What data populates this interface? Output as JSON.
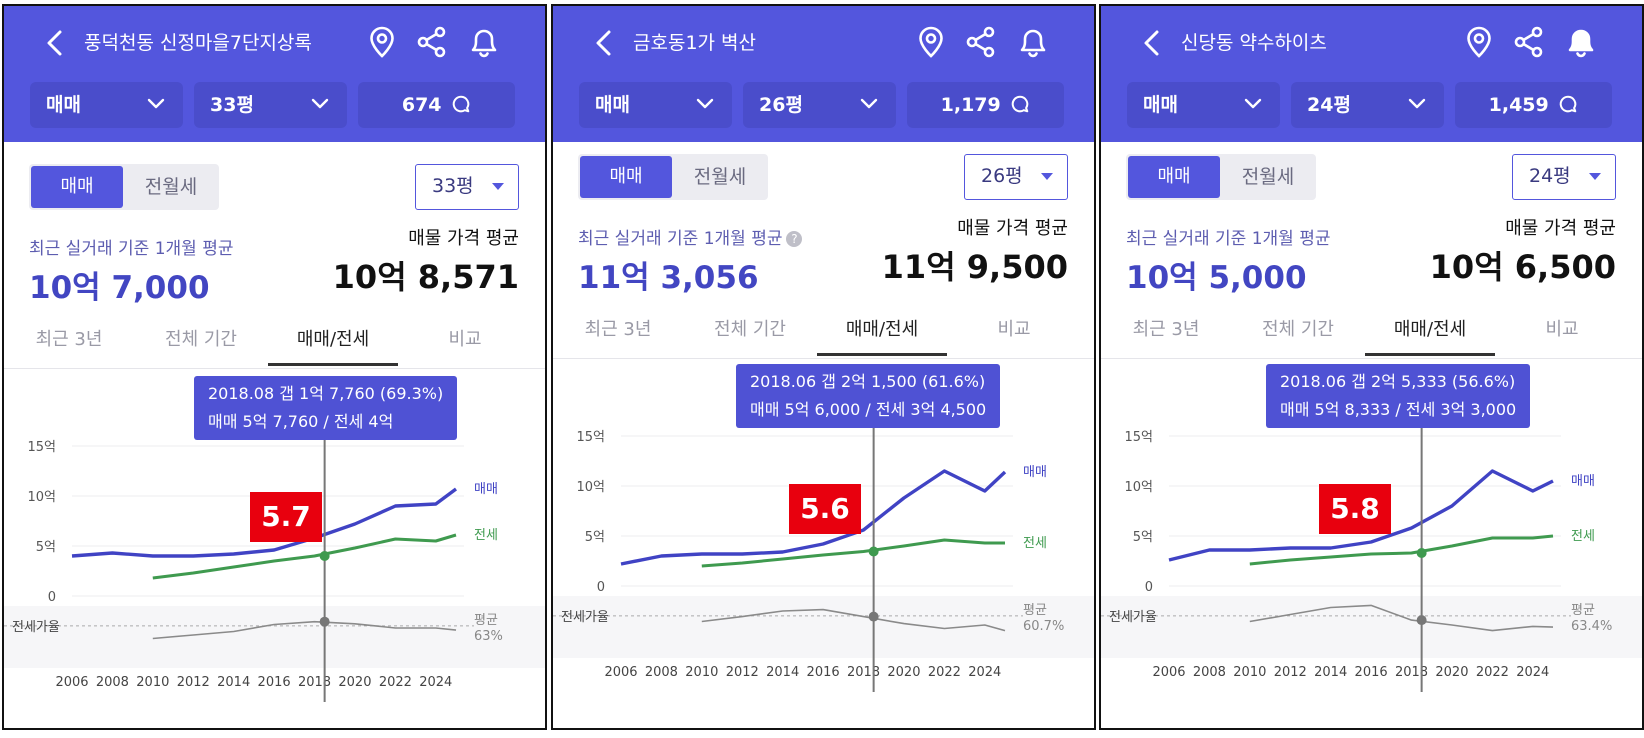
{
  "panels": [
    {
      "title": "풍덕천동 신정마을7단지상록",
      "filters": {
        "trade": "매매",
        "area": "33평",
        "count": "674"
      },
      "toggle": {
        "active": "매매",
        "inactive": "전월세"
      },
      "area_select": "33평",
      "recent_label": "최근 실거래 기준 1개월 평균",
      "recent_value": "10억 7,000",
      "listing_label": "매물 가격 평균",
      "listing_value": "10억 8,571",
      "tabs": [
        "최근 3년",
        "전체 기간",
        "매매/전세",
        "비교"
      ],
      "tooltip": {
        "line1": "2018.08  갭 1억 7,760 (69.3%)",
        "line2": "매매 5억 7,760 / 전세 4억"
      },
      "ratio_badge": "5.7",
      "chart_data": {
        "type": "line",
        "x": [
          2006,
          2008,
          2010,
          2012,
          2014,
          2016,
          2018,
          2020,
          2022,
          2024,
          2025
        ],
        "xticks": [
          "2006",
          "2008",
          "2010",
          "2012",
          "2014",
          "2016",
          "2018",
          "2020",
          "2022",
          "2024"
        ],
        "yticks": [
          "15억",
          "10억",
          "5억",
          "0"
        ],
        "ylim": [
          0,
          15
        ],
        "series": [
          {
            "name": "매매",
            "color": "#4043c4",
            "values": [
              4.0,
              4.3,
              4.0,
              4.0,
              4.2,
              4.6,
              5.8,
              7.2,
              9.0,
              9.2,
              10.7
            ]
          },
          {
            "name": "전세",
            "color": "#3f9a4f",
            "values": [
              null,
              null,
              1.8,
              2.3,
              2.9,
              3.5,
              4.0,
              4.8,
              5.7,
              5.5,
              6.1
            ]
          },
          {
            "name": "전세가율",
            "color": "#8a8a8a",
            "values": [
              null,
              null,
              45,
              50,
              55,
              65,
              69,
              66,
              60,
              60,
              57
            ]
          }
        ],
        "ratio_label": "전세가율",
        "avg_label": "평균",
        "avg_value": "63%"
      }
    },
    {
      "title": "금호동1가 벽산",
      "filters": {
        "trade": "매매",
        "area": "26평",
        "count": "1,179"
      },
      "toggle": {
        "active": "매매",
        "inactive": "전월세"
      },
      "area_select": "26평",
      "recent_label": "최근 실거래 기준 1개월 평균",
      "recent_value": "11억 3,056",
      "listing_label": "매물 가격 평균",
      "listing_value": "11억 9,500",
      "tabs": [
        "최근 3년",
        "전체 기간",
        "매매/전세",
        "비교"
      ],
      "tooltip": {
        "line1": "2018.06  갭 2억 1,500 (61.6%)",
        "line2": "매매 5억 6,000 / 전세 3억 4,500"
      },
      "ratio_badge": "5.6",
      "chart_data": {
        "type": "line",
        "x": [
          2006,
          2008,
          2010,
          2012,
          2014,
          2016,
          2018,
          2020,
          2022,
          2024,
          2025
        ],
        "xticks": [
          "2006",
          "2008",
          "2010",
          "2012",
          "2014",
          "2016",
          "2018",
          "2020",
          "2022",
          "2024"
        ],
        "yticks": [
          "15억",
          "10억",
          "5억",
          "0"
        ],
        "ylim": [
          0,
          15
        ],
        "series": [
          {
            "name": "매매",
            "color": "#4043c4",
            "values": [
              2.2,
              3.0,
              3.2,
              3.2,
              3.4,
              4.2,
              5.6,
              8.8,
              11.5,
              9.5,
              11.4
            ]
          },
          {
            "name": "전세",
            "color": "#3f9a4f",
            "values": [
              null,
              null,
              2.0,
              2.3,
              2.7,
              3.1,
              3.45,
              4.0,
              4.6,
              4.3,
              4.3
            ]
          },
          {
            "name": "전세가율",
            "color": "#8a8a8a",
            "values": [
              null,
              null,
              55,
              62,
              70,
              72,
              62,
              52,
              45,
              50,
              42
            ]
          }
        ],
        "ratio_label": "전세가율",
        "avg_label": "평균",
        "avg_value": "60.7%"
      }
    },
    {
      "title": "신당동 약수하이츠",
      "filters": {
        "trade": "매매",
        "area": "24평",
        "count": "1,459"
      },
      "toggle": {
        "active": "매매",
        "inactive": "전월세"
      },
      "area_select": "24평",
      "recent_label": "최근 실거래 기준 1개월 평균",
      "recent_value": "10억 5,000",
      "listing_label": "매물 가격 평균",
      "listing_value": "10억 6,500",
      "tabs": [
        "최근 3년",
        "전체 기간",
        "매매/전세",
        "비교"
      ],
      "tooltip": {
        "line1": "2018.06  갭 2억 5,333 (56.6%)",
        "line2": "매매 5억 8,333 / 전세 3억 3,000"
      },
      "ratio_badge": "5.8",
      "chart_data": {
        "type": "line",
        "x": [
          2006,
          2008,
          2010,
          2012,
          2014,
          2016,
          2018,
          2020,
          2022,
          2024,
          2025
        ],
        "xticks": [
          "2006",
          "2008",
          "2010",
          "2012",
          "2014",
          "2016",
          "2018",
          "2020",
          "2022",
          "2024"
        ],
        "yticks": [
          "15억",
          "10억",
          "5억",
          "0"
        ],
        "ylim": [
          0,
          15
        ],
        "series": [
          {
            "name": "매매",
            "color": "#4043c4",
            "values": [
              2.6,
              3.6,
              3.6,
              3.8,
              3.8,
              4.4,
              5.8,
              8.0,
              11.5,
              9.5,
              10.5
            ]
          },
          {
            "name": "전세",
            "color": "#3f9a4f",
            "values": [
              null,
              null,
              2.2,
              2.6,
              2.9,
              3.2,
              3.3,
              4.0,
              4.8,
              4.8,
              5.0
            ]
          },
          {
            "name": "전세가율",
            "color": "#8a8a8a",
            "values": [
              null,
              null,
              55,
              65,
              75,
              78,
              57,
              50,
              42,
              48,
              47
            ]
          }
        ],
        "ratio_label": "전세가율",
        "avg_label": "평균",
        "avg_value": "63.4%"
      }
    }
  ]
}
